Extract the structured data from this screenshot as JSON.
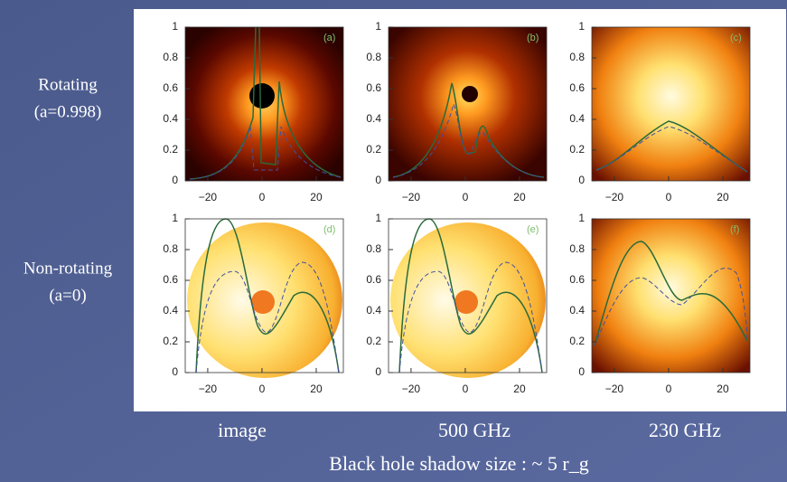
{
  "row_labels": [
    [
      "Rotating",
      "(a=0.998)"
    ],
    [
      "Non-rotating",
      "(a=0)"
    ]
  ],
  "column_labels": [
    "image",
    "500 GHz",
    "230 GHz"
  ],
  "caption": "Black hole shadow size : ~ 5 r_g",
  "figure": {
    "panels": [
      "(a)",
      "(b)",
      "(c)",
      "(d)",
      "(e)",
      "(f)"
    ],
    "yticks": [
      0,
      0.2,
      0.4,
      0.6,
      0.8,
      1
    ],
    "xticks": [
      {
        "value": -20,
        "label": "−20"
      },
      0,
      20
    ]
  }
}
